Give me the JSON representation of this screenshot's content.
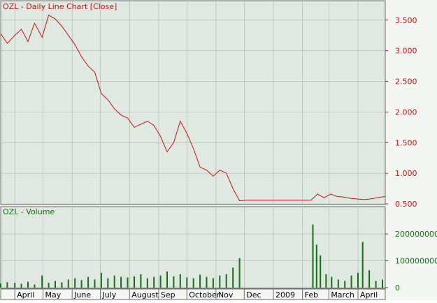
{
  "colors": {
    "plot_bg": "#dfe8e1",
    "frame_bg": "#f4f6f3",
    "grid": "#aab2aa",
    "price": "#cc1111",
    "volume": "#127012",
    "axis_text": "#000000",
    "border": "#6d6d6d"
  },
  "chart_data": [
    {
      "type": "line",
      "title": "OZL - Daily Line Chart [Close]",
      "ylabel": "",
      "ylim": [
        0.5,
        3.6
      ],
      "yticks": [
        "3.500",
        "3.000",
        "2.500",
        "2.000",
        "1.500",
        "1.000",
        "0.500"
      ],
      "ytick_values": [
        3.5,
        3.0,
        2.5,
        2.0,
        1.5,
        1.0,
        0.5
      ],
      "grid": true,
      "x_start": "2008-03-17",
      "x_end": "2009-04-30",
      "series": [
        {
          "x": [
            "2008-03-17",
            "2008-03-24",
            "2008-04-01",
            "2008-04-08",
            "2008-04-15",
            "2008-04-22",
            "2008-04-30",
            "2008-05-07",
            "2008-05-14",
            "2008-05-21",
            "2008-05-28",
            "2008-06-04",
            "2008-06-11",
            "2008-06-18",
            "2008-06-25",
            "2008-07-02",
            "2008-07-09",
            "2008-07-16",
            "2008-07-23",
            "2008-07-30",
            "2008-08-06",
            "2008-08-13",
            "2008-08-20",
            "2008-08-27",
            "2008-09-03",
            "2008-09-10",
            "2008-09-17",
            "2008-09-24",
            "2008-10-01",
            "2008-10-08",
            "2008-10-15",
            "2008-10-22",
            "2008-10-29",
            "2008-11-05",
            "2008-11-12",
            "2008-11-19",
            "2008-11-26",
            "2008-12-03",
            "2009-02-10",
            "2009-02-17",
            "2009-02-24",
            "2009-03-03",
            "2009-03-10",
            "2009-03-17",
            "2009-03-24",
            "2009-03-31",
            "2009-04-07",
            "2009-04-14",
            "2009-04-21",
            "2009-04-30"
          ],
          "values": [
            3.28,
            3.12,
            3.25,
            3.35,
            3.15,
            3.45,
            3.22,
            3.58,
            3.52,
            3.4,
            3.25,
            3.1,
            2.9,
            2.75,
            2.65,
            2.3,
            2.2,
            2.05,
            1.95,
            1.9,
            1.75,
            1.8,
            1.85,
            1.78,
            1.6,
            1.35,
            1.5,
            1.85,
            1.65,
            1.4,
            1.1,
            1.05,
            0.95,
            1.05,
            1.0,
            0.75,
            0.55,
            0.56,
            0.56,
            0.66,
            0.6,
            0.66,
            0.62,
            0.61,
            0.59,
            0.58,
            0.57,
            0.58,
            0.6,
            0.62
          ]
        }
      ]
    },
    {
      "type": "bar",
      "title": "OZL - Volume",
      "ylim": [
        0,
        260000000
      ],
      "yticks": [
        "200000000",
        "100000000",
        "0"
      ],
      "ytick_values": [
        200000000,
        100000000,
        0
      ],
      "grid": true,
      "x_start": "2008-03-17",
      "x_end": "2009-04-30",
      "series": [
        {
          "x": [
            "2008-03-17",
            "2008-03-24",
            "2008-04-01",
            "2008-04-08",
            "2008-04-15",
            "2008-04-22",
            "2008-04-30",
            "2008-05-07",
            "2008-05-14",
            "2008-05-21",
            "2008-05-28",
            "2008-06-04",
            "2008-06-11",
            "2008-06-18",
            "2008-06-25",
            "2008-07-02",
            "2008-07-09",
            "2008-07-16",
            "2008-07-23",
            "2008-07-30",
            "2008-08-06",
            "2008-08-13",
            "2008-08-20",
            "2008-08-27",
            "2008-09-03",
            "2008-09-10",
            "2008-09-17",
            "2008-09-24",
            "2008-10-01",
            "2008-10-08",
            "2008-10-15",
            "2008-10-22",
            "2008-10-29",
            "2008-11-05",
            "2008-11-12",
            "2008-11-19",
            "2008-11-26",
            "2009-02-12",
            "2009-02-16",
            "2009-02-20",
            "2009-02-26",
            "2009-03-04",
            "2009-03-11",
            "2009-03-18",
            "2009-03-25",
            "2009-04-01",
            "2009-04-06",
            "2009-04-13",
            "2009-04-20",
            "2009-04-27"
          ],
          "values": [
            15000000,
            20000000,
            18000000,
            14000000,
            22000000,
            12000000,
            45000000,
            18000000,
            25000000,
            20000000,
            30000000,
            35000000,
            28000000,
            40000000,
            30000000,
            55000000,
            35000000,
            45000000,
            40000000,
            38000000,
            42000000,
            50000000,
            35000000,
            40000000,
            45000000,
            60000000,
            42000000,
            50000000,
            38000000,
            35000000,
            48000000,
            40000000,
            35000000,
            45000000,
            50000000,
            75000000,
            110000000,
            235000000,
            160000000,
            120000000,
            50000000,
            40000000,
            30000000,
            25000000,
            45000000,
            55000000,
            170000000,
            65000000,
            25000000,
            30000000
          ]
        }
      ]
    }
  ],
  "x_axis": {
    "labels": [
      "April",
      "May",
      "June",
      "July",
      "August",
      "Sep",
      "October",
      "Nov",
      "Dec",
      "2009",
      "Feb",
      "March",
      "April"
    ],
    "dates": [
      "2008-04-01",
      "2008-05-01",
      "2008-06-01",
      "2008-07-01",
      "2008-08-01",
      "2008-09-01",
      "2008-10-01",
      "2008-11-01",
      "2008-12-01",
      "2009-01-01",
      "2009-02-01",
      "2009-03-01",
      "2009-04-01"
    ]
  }
}
